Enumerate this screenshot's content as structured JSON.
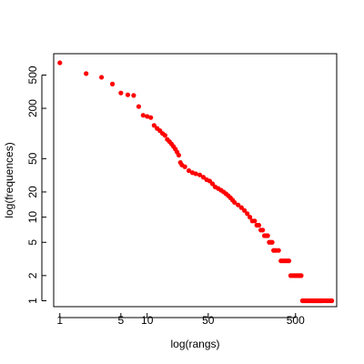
{
  "chart_data": {
    "type": "scatter",
    "title": "",
    "xlabel": "log(rangs)",
    "ylabel": "log(frequences)",
    "xscale": "log",
    "yscale": "log",
    "xlim": [
      0.85,
      1480
    ],
    "ylim": [
      0.85,
      900
    ],
    "grid": false,
    "x_ticks": [
      1,
      5,
      10,
      50,
      500
    ],
    "x_tick_labels": [
      "1",
      "5",
      "10",
      "50",
      "500"
    ],
    "y_ticks": [
      1,
      2,
      5,
      10,
      20,
      50,
      200,
      500
    ],
    "y_tick_labels": [
      "1",
      "2",
      "5",
      "10",
      "20",
      "50",
      "200",
      "500"
    ],
    "marker_color": "#ff0000",
    "series": [
      {
        "x": [
          1,
          2,
          3,
          4,
          5,
          6,
          7,
          8,
          9,
          10,
          11,
          12,
          13,
          14,
          15,
          16,
          17,
          18,
          19,
          20,
          21,
          22,
          23,
          24,
          25,
          27,
          30,
          33,
          36,
          40,
          44,
          48,
          52,
          56,
          60,
          65,
          70,
          75,
          80,
          85,
          90,
          95,
          100,
          110,
          120,
          130,
          140,
          150,
          160,
          170,
          180,
          190,
          200,
          210,
          220,
          230,
          240,
          250,
          260,
          270,
          280,
          290,
          300,
          320,
          340,
          360,
          380,
          400,
          420,
          440,
          460,
          480,
          500,
          520,
          540,
          560,
          580,
          600,
          620,
          640,
          660,
          680,
          700,
          720,
          740,
          760,
          780,
          800,
          820,
          840,
          860,
          880,
          900,
          920,
          940,
          960,
          980,
          1000,
          1050,
          1100,
          1150,
          1200,
          1250,
          1300
        ],
        "y": [
          700,
          520,
          470,
          390,
          305,
          290,
          285,
          210,
          165,
          160,
          155,
          125,
          115,
          108,
          100,
          95,
          85,
          80,
          75,
          70,
          65,
          60,
          55,
          45,
          42,
          40,
          36,
          34,
          33,
          32,
          30,
          28,
          27,
          25,
          23,
          22,
          21,
          20,
          19,
          18,
          17,
          16,
          15,
          14,
          13,
          12,
          11,
          10,
          9,
          9,
          8,
          8,
          7,
          7,
          6,
          6,
          6,
          5,
          5,
          5,
          4,
          4,
          4,
          4,
          3,
          3,
          3,
          3,
          3,
          2,
          2,
          2,
          2,
          2,
          2,
          2,
          2,
          1,
          1,
          1,
          1,
          1,
          1,
          1,
          1,
          1,
          1,
          1,
          1,
          1,
          1,
          1,
          1,
          1,
          1,
          1,
          1,
          1,
          1,
          1,
          1,
          1,
          1,
          1
        ]
      }
    ]
  }
}
